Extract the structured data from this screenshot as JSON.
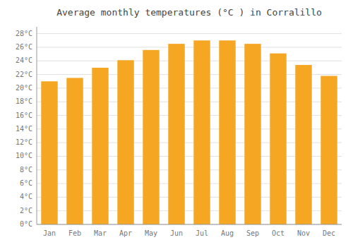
{
  "chart_data": {
    "type": "bar",
    "title": "Average monthly temperatures (°C ) in Corralillo",
    "categories": [
      "Jan",
      "Feb",
      "Mar",
      "Apr",
      "May",
      "Jun",
      "Jul",
      "Aug",
      "Sep",
      "Oct",
      "Nov",
      "Dec"
    ],
    "values": [
      21.0,
      21.5,
      23.0,
      24.1,
      25.6,
      26.5,
      27.0,
      27.0,
      26.5,
      25.1,
      23.4,
      21.8
    ],
    "color": "#F5A623",
    "ylim": [
      0,
      29
    ],
    "yticks": [
      {
        "value": 0,
        "label": "0°C"
      },
      {
        "value": 2,
        "label": "2°C"
      },
      {
        "value": 4,
        "label": "4°C"
      },
      {
        "value": 6,
        "label": "6°C"
      },
      {
        "value": 8,
        "label": "8°C"
      },
      {
        "value": 10,
        "label": "10°C"
      },
      {
        "value": 12,
        "label": "12°C"
      },
      {
        "value": 14,
        "label": "14°C"
      },
      {
        "value": 16,
        "label": "16°C"
      },
      {
        "value": 18,
        "label": "18°C"
      },
      {
        "value": 20,
        "label": "20°C"
      },
      {
        "value": 22,
        "label": "22°C"
      },
      {
        "value": 24,
        "label": "24°C"
      },
      {
        "value": 26,
        "label": "26°C"
      },
      {
        "value": 28,
        "label": "28°C"
      }
    ],
    "grid": true
  }
}
